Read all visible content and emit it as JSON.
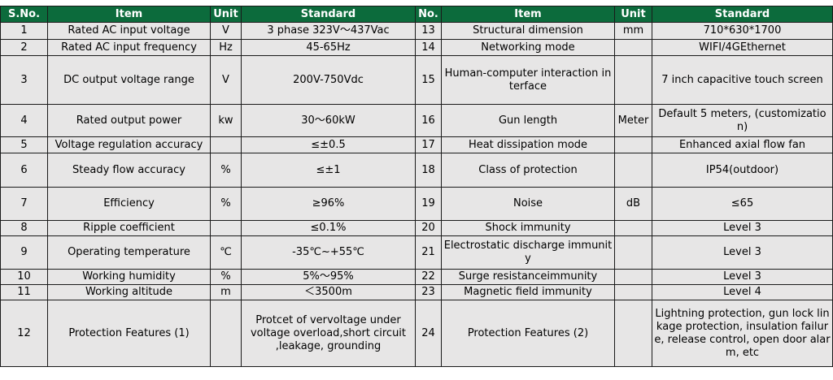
{
  "headers": {
    "sno": "S.No.",
    "item": "Item",
    "unit": "Unit",
    "standard": "Standard",
    "no": "No.",
    "item2": "Item",
    "unit2": "Unit",
    "standard2": "Standard"
  },
  "rows": [
    {
      "n": "1",
      "item": "Rated AC input voltage",
      "unit": "V",
      "std": "3 phase 323V～437Vac",
      "n2": "13",
      "item2": "Structural dimension",
      "unit2": "mm",
      "std2": "710*630*1700"
    },
    {
      "n": "2",
      "item": "Rated AC input frequency",
      "unit": "Hz",
      "std": "45-65Hz",
      "n2": "14",
      "item2": "Networking mode",
      "unit2": "",
      "std2": "WIFI/4GEthernet"
    },
    {
      "n": "3",
      "item": "DC output voltage range",
      "unit": "V",
      "std": "200V-750Vdc",
      "n2": "15",
      "item2": "Human-computer interaction interface",
      "unit2": "",
      "std2": "7 inch capacitive touch screen"
    },
    {
      "n": "4",
      "item": "Rated output power",
      "unit": "kw",
      "std": "30～60kW",
      "n2": "16",
      "item2": "Gun length",
      "unit2": "Meter",
      "std2": "Default 5 meters, (customization)"
    },
    {
      "n": "5",
      "item": "Voltage regulation accuracy",
      "unit": "",
      "std": "≤±0.5",
      "n2": "17",
      "item2": "Heat dissipation mode",
      "unit2": "",
      "std2": "Enhanced axial flow fan"
    },
    {
      "n": "6",
      "item": "Steady flow accuracy",
      "unit": "%",
      "std": "≤±1",
      "n2": "18",
      "item2": "Class of protection",
      "unit2": "",
      "std2": "IP54(outdoor)"
    },
    {
      "n": "7",
      "item": "Efficiency",
      "unit": "%",
      "std": "≥96%",
      "n2": "19",
      "item2": "Noise",
      "unit2": "dB",
      "std2": "≤65"
    },
    {
      "n": "8",
      "item": "Ripple coefficient",
      "unit": "",
      "std": "≤0.1%",
      "n2": "20",
      "item2": "Shock immunity",
      "unit2": "",
      "std2": "Level 3"
    },
    {
      "n": "9",
      "item": "Operating temperature",
      "unit": "℃",
      "std": "-35℃~+55℃",
      "n2": "21",
      "item2": "Electrostatic discharge immunity",
      "unit2": "",
      "std2": "Level 3"
    },
    {
      "n": "10",
      "item": "Working humidity",
      "unit": "%",
      "std": "5%～95%",
      "n2": "22",
      "item2": "Surge resistanceimmunity",
      "unit2": "",
      "std2": "Level 3"
    },
    {
      "n": "11",
      "item": "Working altitude",
      "unit": "m",
      "std": "＜3500m",
      "n2": "23",
      "item2": "Magnetic field immunity",
      "unit2": "",
      "std2": "Level 4"
    },
    {
      "n": "12",
      "item": "Protection Features (1)",
      "unit": "",
      "std": "Protcet of vervoltage  under voltage overload,short circuit ,leakage, grounding",
      "n2": "24",
      "item2": "Protection Features (2)",
      "unit2": "",
      "std2": "Lightning protection, gun lock linkage protection, insulation failure, release control, open door alarm, etc"
    }
  ]
}
